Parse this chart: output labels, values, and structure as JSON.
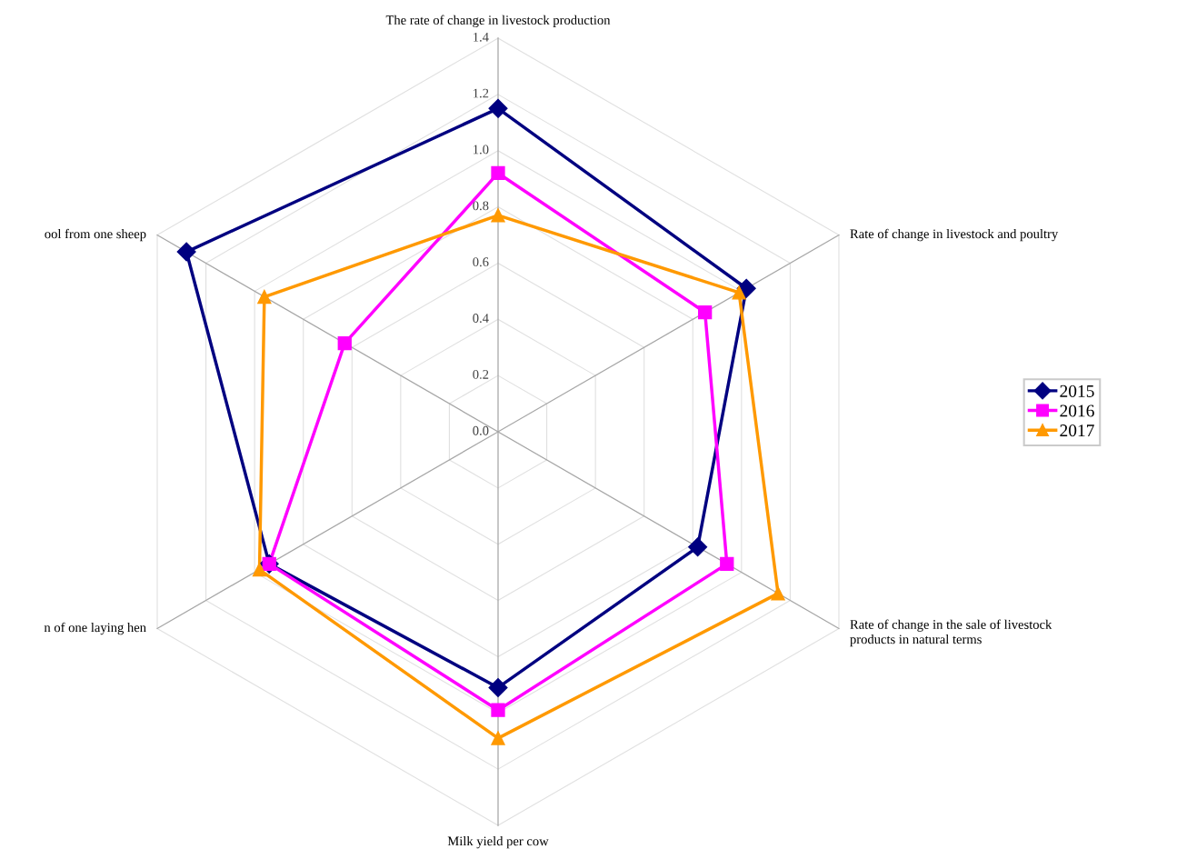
{
  "chart_data": {
    "type": "radar",
    "categories": [
      "The rate of change in livestock production",
      "Rate of change in livestock and poultry",
      "Rate of change in the sale of livestock\nproducts in natural terms",
      "Milk yield per cow",
      "n of one laying hen",
      "ool from one sheep"
    ],
    "ylim": [
      0,
      1.4
    ],
    "yticks": [
      {
        "value": 0,
        "label": "0.0"
      },
      0.2,
      0.4,
      0.6,
      0.8,
      {
        "value": 1,
        "label": "1.0"
      },
      1.2,
      1.4
    ],
    "grid": true,
    "legend": "right",
    "series": [
      {
        "name": "2015",
        "color": "#000080",
        "marker": "diamond",
        "values": [
          1.15,
          1.02,
          0.82,
          0.91,
          0.94,
          1.28
        ]
      },
      {
        "name": "2016",
        "color": "#ff00ff",
        "marker": "square",
        "values": [
          0.92,
          0.85,
          0.94,
          0.99,
          0.94,
          0.63
        ]
      },
      {
        "name": "2017",
        "color": "#ff9900",
        "marker": "triangle",
        "values": [
          0.77,
          0.99,
          1.15,
          1.09,
          0.98,
          0.96
        ]
      }
    ]
  }
}
